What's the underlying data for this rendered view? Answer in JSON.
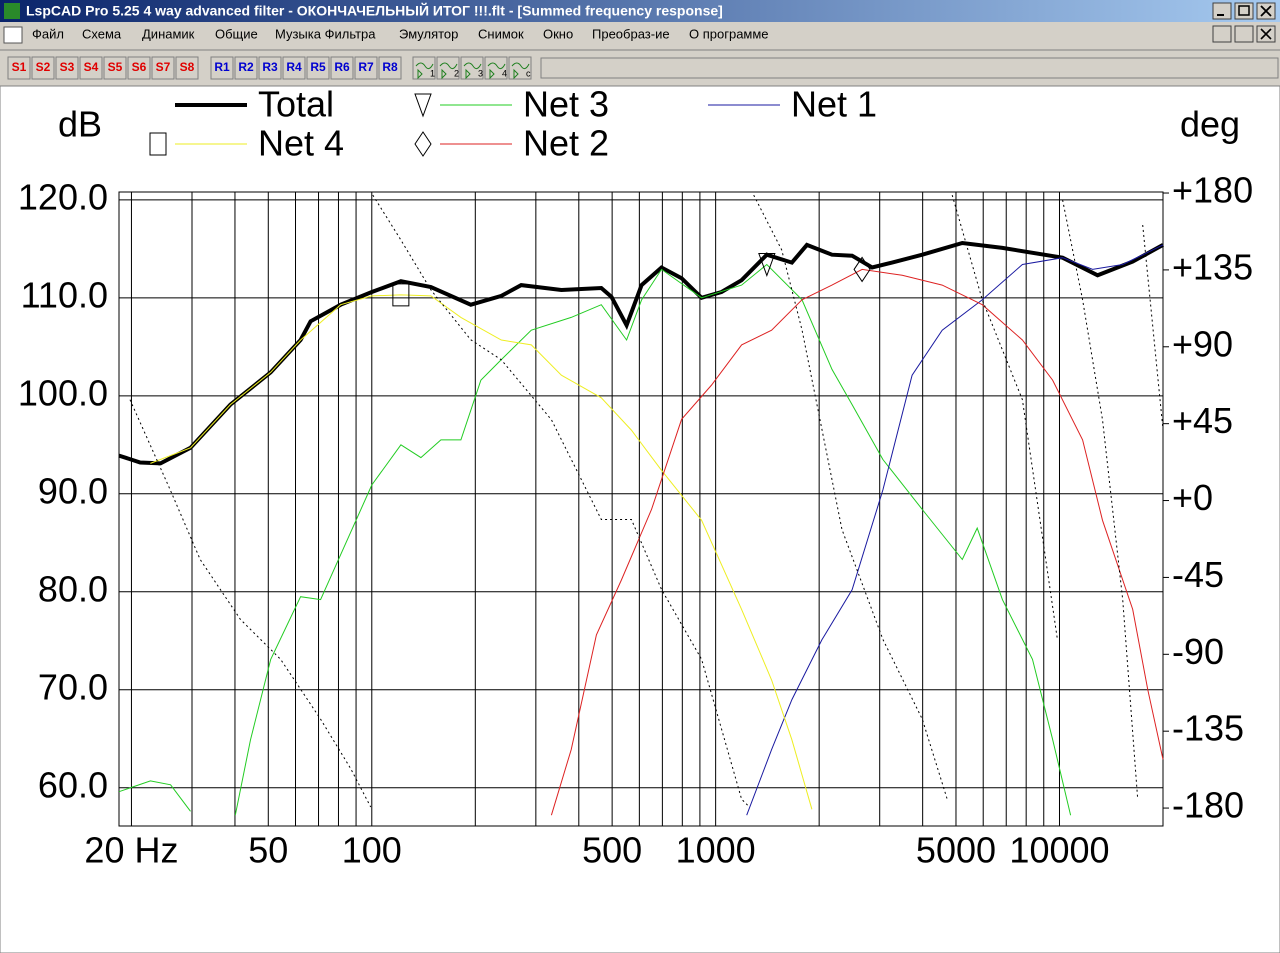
{
  "window": {
    "title": "LspCAD Pro 5.25 4 way advanced filter - ОКОНЧАЧЕЛЬНЫЙ ИТОГ !!!.flt - [Summed frequency response]",
    "menu": [
      "Файл",
      "Схема",
      "Динамик",
      "Общие",
      "Музыка Фильтра",
      "Эмулятор",
      "Снимок",
      "Окно",
      "Преобраз-ие",
      "О программе"
    ],
    "toolbar": {
      "s": [
        "S1",
        "S2",
        "S3",
        "S4",
        "S5",
        "S6",
        "S7",
        "S8"
      ],
      "r": [
        "R1",
        "R2",
        "R3",
        "R4",
        "R5",
        "R6",
        "R7",
        "R8"
      ],
      "icons": [
        "1",
        "2",
        "3",
        "4",
        "c"
      ]
    }
  },
  "chart_data": {
    "type": "line",
    "y_label": "dB",
    "y2_label": "deg",
    "log_x": true,
    "grid": true,
    "xlim": [
      18.4,
      20000
    ],
    "ylim": [
      56.1,
      120.8
    ],
    "y2lim": [
      -190.5,
      180.6
    ],
    "xticks": [
      {
        "value": 20,
        "label": "20 Hz"
      },
      50,
      100,
      500,
      1000,
      5000,
      10000
    ],
    "xgrid": [
      20,
      30,
      40,
      50,
      60,
      70,
      80,
      90,
      100,
      200,
      300,
      400,
      500,
      600,
      700,
      800,
      900,
      1000,
      2000,
      3000,
      4000,
      5000,
      6000,
      7000,
      8000,
      9000,
      10000,
      20000
    ],
    "yticks": [
      {
        "value": 120,
        "label": "120.0"
      },
      {
        "value": 110,
        "label": "110.0"
      },
      {
        "value": 100,
        "label": "100.0"
      },
      {
        "value": 90,
        "label": "90.0"
      },
      {
        "value": 80,
        "label": "80.0"
      },
      {
        "value": 70,
        "label": "70.0"
      },
      {
        "value": 60,
        "label": "60.0"
      }
    ],
    "y2ticks": [
      {
        "value": 180,
        "label": "+180"
      },
      {
        "value": 135,
        "label": "+135"
      },
      {
        "value": 90,
        "label": "+90"
      },
      {
        "value": 45,
        "label": "+45"
      },
      {
        "value": 0,
        "label": "+0"
      },
      -45,
      -90,
      -135,
      -180
    ],
    "series": [
      {
        "name": "Total",
        "color": "#000000",
        "style": "thick",
        "x": [
          18.4,
          21.2,
          24.3,
          29.7,
          38.8,
          50.8,
          62.1,
          66.4,
          81.2,
          100,
          121.5,
          148.6,
          194,
          238,
          272,
          356,
          465,
          498,
          551,
          609,
          696,
          796,
          910,
          1040,
          1190,
          1409,
          1666,
          1842,
          2180,
          2494,
          2851,
          3260,
          3990,
          5217,
          6823,
          10210,
          12910,
          16330,
          20000
        ],
        "values": [
          93.9,
          93.2,
          93.1,
          94.7,
          99.1,
          102.4,
          105.7,
          107.6,
          109.3,
          110.6,
          111.7,
          111.1,
          109.3,
          110.2,
          111.3,
          110.8,
          111.0,
          110.1,
          107.2,
          111.3,
          113.1,
          112.0,
          110.0,
          110.6,
          111.8,
          114.4,
          113.6,
          115.4,
          114.4,
          114.3,
          113.1,
          113.6,
          114.4,
          115.6,
          115.1,
          114.1,
          112.3,
          113.7,
          115.4
        ]
      },
      {
        "name": "Net 3",
        "color": "#22cc22",
        "style": "solid",
        "marker": "triangle",
        "x": [
          18.4,
          22.7,
          26.0,
          29.7,
          35,
          40.1,
          44.4,
          50.8,
          62.1,
          71,
          81.2,
          100,
          121.5,
          138.9,
          158.8,
          181.6,
          207.6,
          238,
          291,
          380,
          465,
          551,
          609,
          696,
          910,
          1190,
          1409,
          1783,
          2180,
          2494,
          3065,
          3990,
          5217,
          5765,
          6823,
          8344,
          9554,
          10770
        ],
        "values": [
          59.6,
          60.7,
          60.3,
          57.6,
          null,
          57.2,
          64.9,
          73.1,
          79.5,
          79.2,
          83.8,
          90.9,
          95.0,
          93.7,
          95.5,
          95.5,
          101.6,
          103.7,
          106.7,
          108.0,
          109.3,
          105.7,
          109.8,
          112.9,
          110.0,
          111.3,
          113.4,
          109.8,
          102.7,
          99.1,
          93.5,
          88.4,
          83.3,
          86.5,
          79.2,
          73.1,
          64.9,
          57.2
        ]
      },
      {
        "name": "Net 1",
        "color": "#1a1aa0",
        "style": "solid",
        "x": [
          1231,
          1455,
          1666,
          2037,
          2494,
          3065,
          3727,
          4560,
          5965,
          7800,
          10210,
          12480,
          15270,
          20000
        ],
        "values": [
          57.2,
          63.9,
          69.0,
          75.1,
          80.2,
          90.4,
          102.1,
          106.7,
          109.8,
          113.4,
          114.1,
          112.9,
          113.4,
          115.4
        ]
      },
      {
        "name": "Net 4",
        "color": "#eeee22",
        "style": "solid",
        "marker": "square",
        "x": [
          22.7,
          29.7,
          38.8,
          50.8,
          62.1,
          81.2,
          100,
          121.5,
          148.6,
          181.6,
          238,
          291,
          356,
          465,
          569,
          696,
          910,
          1190,
          1455,
          1666,
          1905
        ],
        "values": [
          93.1,
          94.7,
          99.1,
          102.4,
          105.7,
          109.3,
          110.2,
          110.3,
          110.2,
          108.0,
          105.7,
          105.2,
          102.1,
          99.8,
          96.5,
          92.4,
          87.3,
          78.2,
          71.0,
          64.9,
          57.8
        ]
      },
      {
        "name": "Net 2",
        "color": "#dd2222",
        "style": "solid",
        "marker": "diamond",
        "x": [
          333,
          380,
          450,
          532,
          651,
          796,
          973,
          1190,
          1455,
          1783,
          2180,
          2666,
          3487,
          4560,
          5965,
          7800,
          9550,
          11670,
          13340,
          16330,
          18060,
          20000
        ],
        "values": [
          57.2,
          63.9,
          75.6,
          81.2,
          88.4,
          97.6,
          101.1,
          105.2,
          106.7,
          109.8,
          111.3,
          112.9,
          112.3,
          111.3,
          109.3,
          105.7,
          101.6,
          95.5,
          87.3,
          78.2,
          70.0,
          62.9
        ]
      },
      {
        "color": "#000000",
        "style": "dotted",
        "axis": "y2",
        "x": [
          19.8,
          25.9,
          31.7,
          41.5,
          54.3,
          71,
          86.9,
          99.3,
          100,
          100.7,
          121.5,
          148.6,
          194,
          238,
          333,
          465,
          569,
          696,
          910,
          1190,
          1254,
          1260,
          1290,
          1556,
          1783,
          2330,
          3065,
          3990,
          4713,
          4800,
          4875,
          5965,
          7800,
          9862,
          9950,
          10210,
          11670,
          13340,
          15270,
          16880,
          17000,
          17460,
          20000
        ],
        "values": [
          59.0,
          6.4,
          -34.5,
          -69.6,
          -92.9,
          -128,
          -157,
          -179.4,
          null,
          178.8,
          152.5,
          123.3,
          94.1,
          82.4,
          47.3,
          -11.1,
          -11.1,
          -52,
          -92.9,
          -174.8,
          -179.4,
          null,
          178.8,
          146.7,
          99.9,
          -17,
          -81.3,
          -128,
          -174.8,
          null,
          178.8,
          117.5,
          59.0,
          -81.3,
          null,
          175.9,
          117.5,
          47.3,
          -57.9,
          -174.8,
          null,
          161.3,
          41.5
        ]
      }
    ]
  }
}
